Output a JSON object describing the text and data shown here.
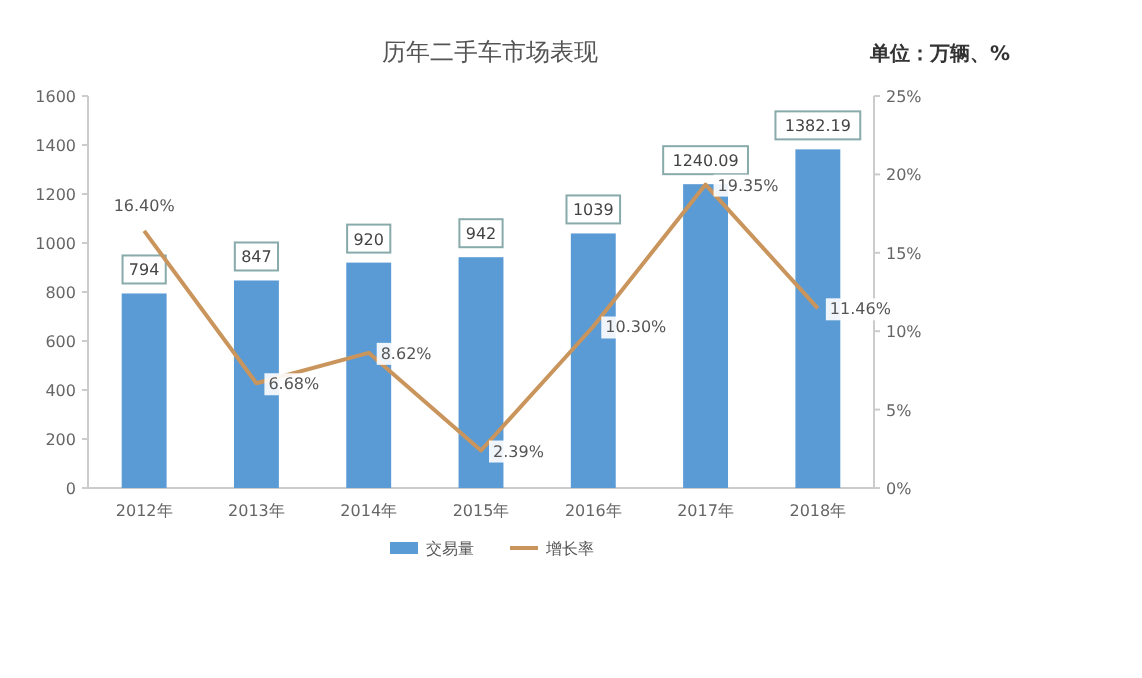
{
  "chart_data": {
    "type": "bar",
    "title": "历年二手车市场表现",
    "annotations": [
      "单位：万辆、%"
    ],
    "categories": [
      "2012年",
      "2013年",
      "2014年",
      "2015年",
      "2016年",
      "2017年",
      "2018年"
    ],
    "series": [
      {
        "name": "交易量",
        "color": "#5b9bd5",
        "values": [
          794,
          847,
          920,
          942,
          1039,
          1240.09,
          1382.19
        ],
        "value_labels": [
          "794",
          "847",
          "920",
          "942",
          "1039",
          "1240.09",
          "1382.19"
        ]
      },
      {
        "name": "增长率",
        "type": "line",
        "axis": "y2",
        "color": "#c9955c",
        "values": [
          16.4,
          6.68,
          8.62,
          2.39,
          10.3,
          19.35,
          11.46
        ],
        "value_labels": [
          "16.40%",
          "6.68%",
          "8.62%",
          "2.39%",
          "10.30%",
          "19.35%",
          "11.46%"
        ]
      }
    ],
    "ylim": [
      0,
      1600
    ],
    "yticks": [
      0,
      200,
      400,
      600,
      800,
      1000,
      1200,
      1400,
      1600
    ],
    "y2lim": [
      0,
      25
    ],
    "y2ticks": [
      {
        "value": 0,
        "label": "0%"
      },
      {
        "value": 5,
        "label": "5%"
      },
      {
        "value": 10,
        "label": "10%"
      },
      {
        "value": 15,
        "label": "15%"
      },
      {
        "value": 20,
        "label": "20%"
      },
      {
        "value": 25,
        "label": "25%"
      }
    ],
    "grid": false,
    "legend": "bottom",
    "marker": "none",
    "line_style": "solid"
  }
}
